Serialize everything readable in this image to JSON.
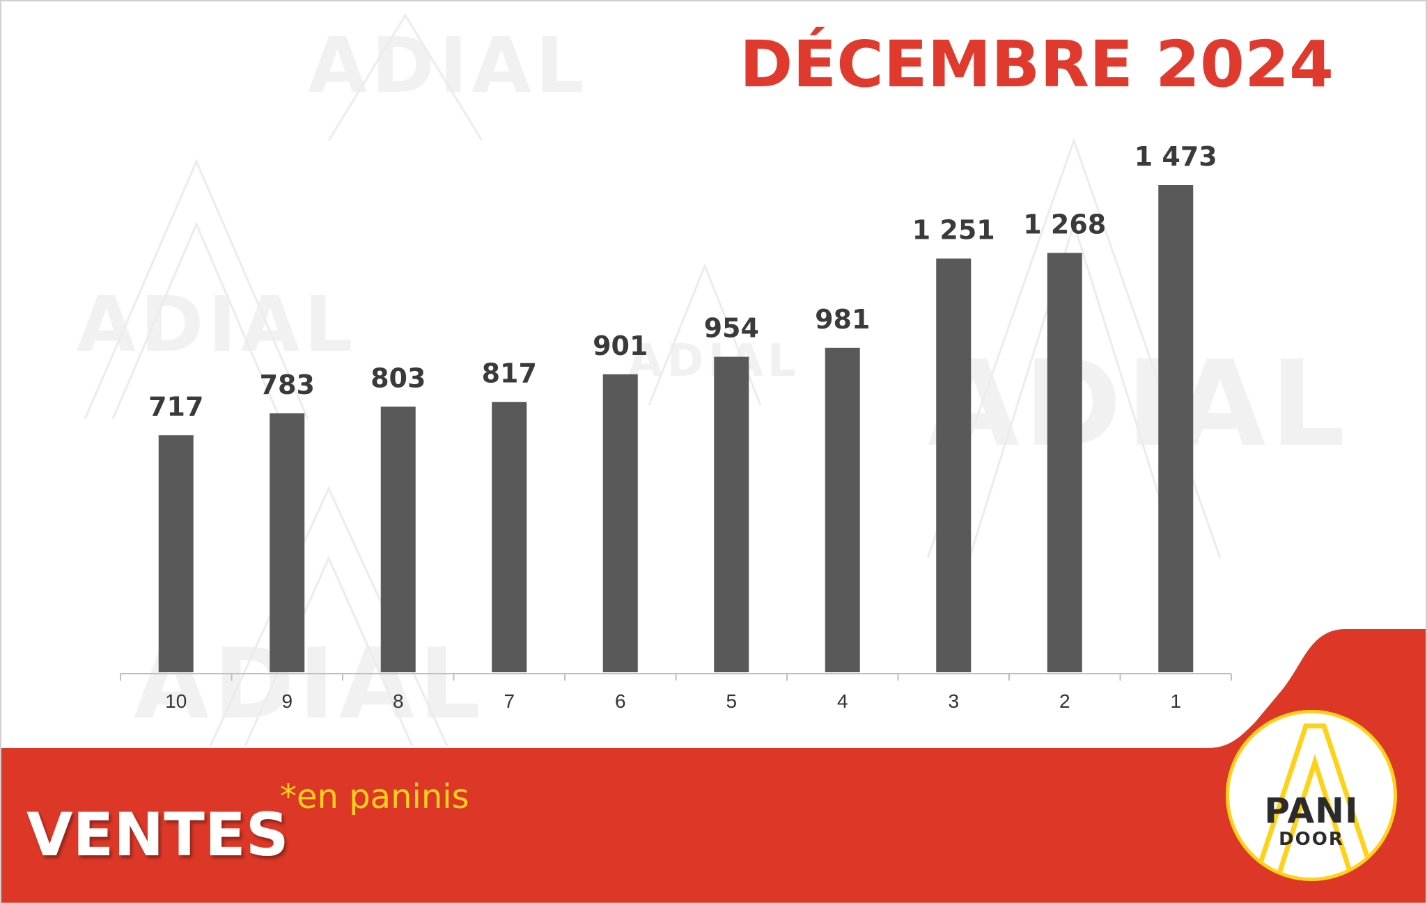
{
  "header": {
    "title": "DÉCEMBRE 2024"
  },
  "watermark": {
    "text": "ADIAL"
  },
  "footer": {
    "label": "VENTES",
    "subtitle": "*en paninis"
  },
  "logo": {
    "line1": "PANI",
    "line2": "DOOR"
  },
  "colors": {
    "accent_red": "#e03a2f",
    "band_red": "#dc3727",
    "bar": "#595959",
    "yellow": "#ffd21a"
  },
  "chart_data": {
    "type": "bar",
    "categories": [
      "10",
      "9",
      "8",
      "7",
      "6",
      "5",
      "4",
      "3",
      "2",
      "1"
    ],
    "values": [
      717,
      783,
      803,
      817,
      901,
      954,
      981,
      1251,
      1268,
      1473
    ],
    "value_labels": [
      "717",
      "783",
      "803",
      "817",
      "901",
      "954",
      "981",
      "1 251",
      "1 268",
      "1 473"
    ],
    "title": "DÉCEMBRE 2024",
    "xlabel": "",
    "ylabel": "",
    "ylim": [
      0,
      1473
    ],
    "grid": false,
    "legend": "none"
  }
}
